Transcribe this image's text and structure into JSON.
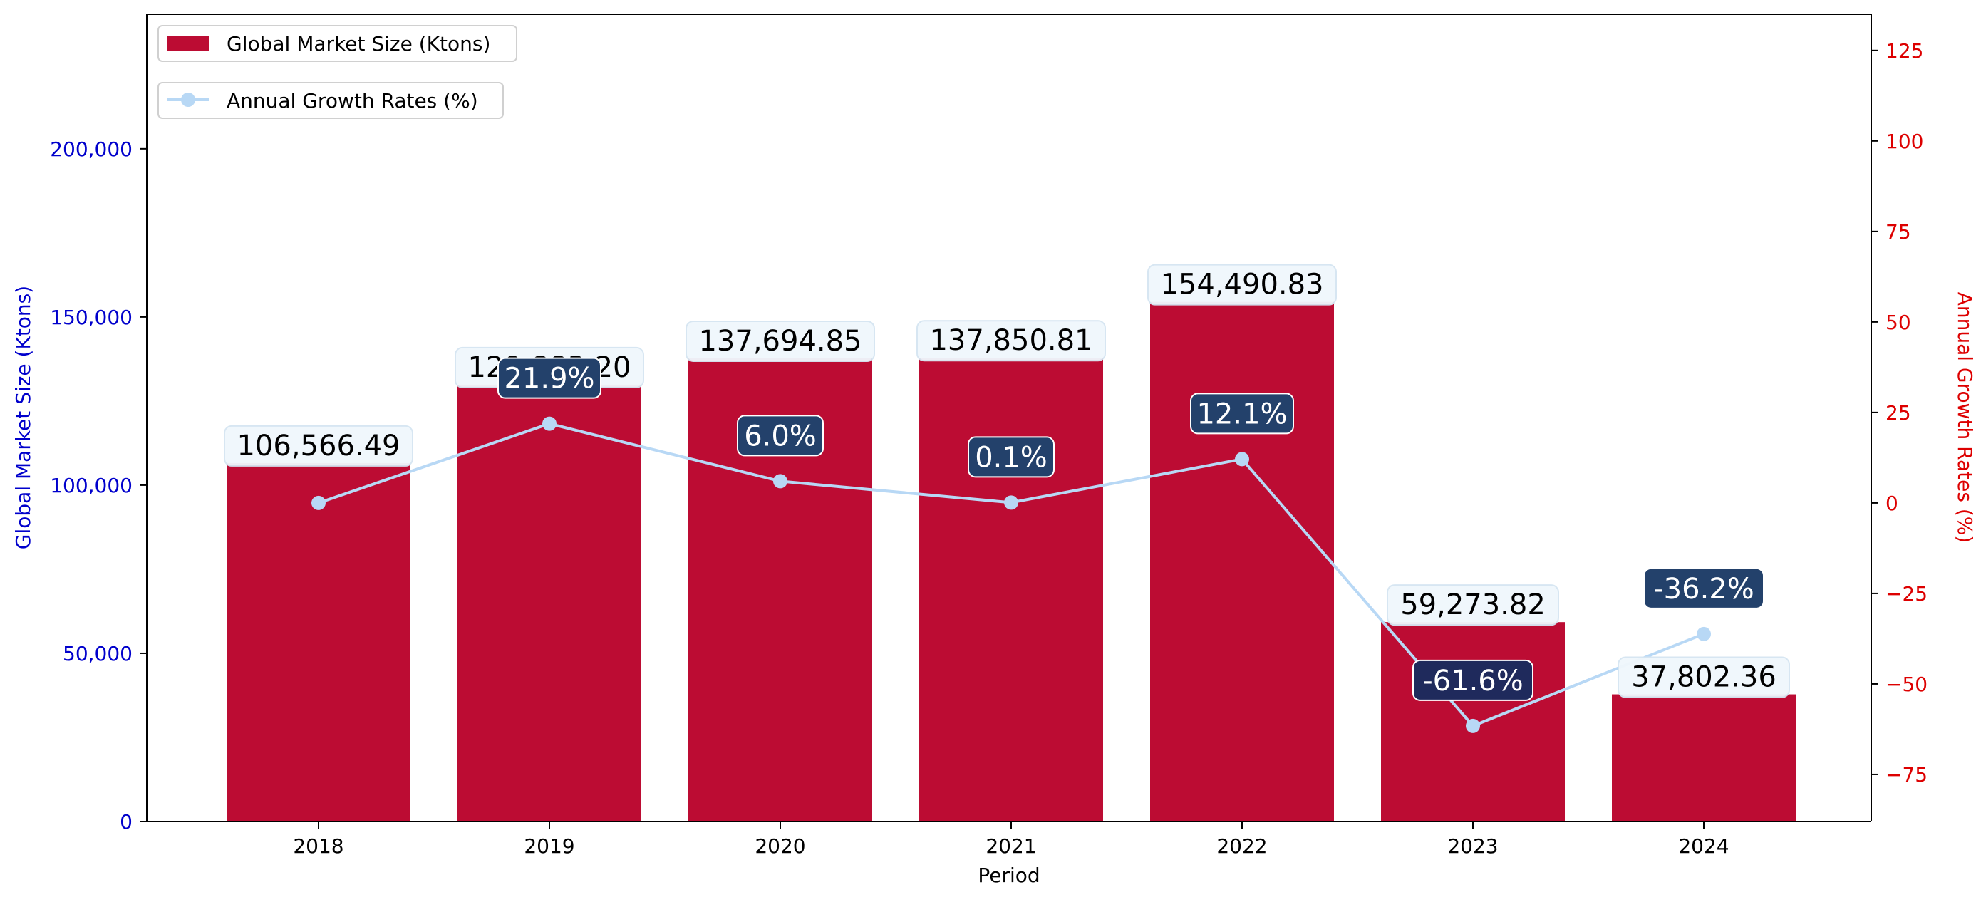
{
  "chart_data": {
    "type": "bar",
    "title": "",
    "xlabel": "Period",
    "ylabel": "Global Market Size (Ktons)",
    "y2label": "Annual Growth Rates (%)",
    "categories": [
      "2018",
      "2019",
      "2020",
      "2021",
      "2022",
      "2023",
      "2024"
    ],
    "series": [
      {
        "name": "Global Market Size (Ktons)",
        "type": "bar",
        "axis": "left",
        "values": [
          106566.49,
          129883.2,
          137694.85,
          137850.81,
          154490.83,
          59273.82,
          37802.36
        ],
        "labels": [
          "106,566.49",
          "129,883.20",
          "137,694.85",
          "137,850.81",
          "154,490.83",
          "59,273.82",
          "37,802.36"
        ],
        "color": "#bc0c33"
      },
      {
        "name": "Annual Growth Rates (%)",
        "type": "line",
        "axis": "right",
        "values": [
          0.0,
          21.9,
          6.0,
          0.1,
          12.1,
          -61.6,
          -36.2
        ],
        "labels": [
          "",
          "21.9%",
          "6.0%",
          "0.1%",
          "12.1%",
          "-61.6%",
          "-36.2%"
        ],
        "color": "#b8d8f5"
      }
    ],
    "ylim": [
      0,
      240000
    ],
    "y2lim": [
      -88,
      135
    ],
    "y_ticks": [
      0,
      50000,
      100000,
      150000,
      200000
    ],
    "y_tick_labels": [
      "0",
      "50,000",
      "100,000",
      "150,000",
      "200,000"
    ],
    "y2_ticks": [
      -75,
      -50,
      -25,
      0,
      25,
      50,
      75,
      100,
      125
    ],
    "y2_tick_labels": [
      "−75",
      "−50",
      "−25",
      "0",
      "25",
      "50",
      "75",
      "100",
      "125"
    ],
    "legend_position": "top-left",
    "grid": false,
    "colors": {
      "left_axis": "#0000cc",
      "right_axis": "#dd0000",
      "bar": "#bc0c33",
      "line": "#b8d8f5",
      "bar_label_bg": "#f0f7fc",
      "line_label_bg_low": "#1f2a5c",
      "line_label_bg_high": "#23416b"
    }
  }
}
